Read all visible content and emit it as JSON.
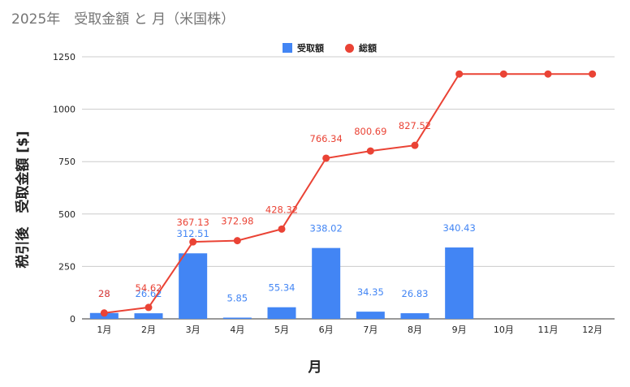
{
  "chart_data": {
    "type": "bar",
    "title": "2025年　受取金額 と 月（米国株）",
    "xlabel": "月",
    "ylabel": "税引後　受取金額 [$]",
    "categories": [
      "1月",
      "2月",
      "3月",
      "4月",
      "5月",
      "6月",
      "7月",
      "8月",
      "9月",
      "10月",
      "11月",
      "12月"
    ],
    "series": [
      {
        "name": "受取額",
        "type": "bar",
        "color": "#4285f4",
        "values": [
          28,
          26.62,
          312.51,
          5.85,
          55.34,
          338.02,
          34.35,
          26.83,
          340.43,
          null,
          null,
          null
        ],
        "labels": [
          "28",
          "26.62",
          "312.51",
          "5.85",
          "55.34",
          "338.02",
          "34.35",
          "26.83",
          "340.43",
          "",
          "",
          ""
        ]
      },
      {
        "name": "総額",
        "type": "line",
        "color": "#ea4335",
        "values": [
          28,
          54.62,
          367.13,
          372.98,
          428.32,
          766.34,
          800.69,
          827.52,
          1167.95,
          1167.95,
          1167.95,
          1167.95
        ],
        "labels": [
          "28",
          "54.62",
          "367.13",
          "372.98",
          "428.32",
          "766.34",
          "800.69",
          "827.52",
          "",
          "",
          "",
          ""
        ]
      }
    ],
    "ylim": [
      0,
      1250
    ],
    "yticks": [
      0,
      250,
      500,
      750,
      1000,
      1250
    ],
    "grid": true,
    "legend_position": "top"
  }
}
